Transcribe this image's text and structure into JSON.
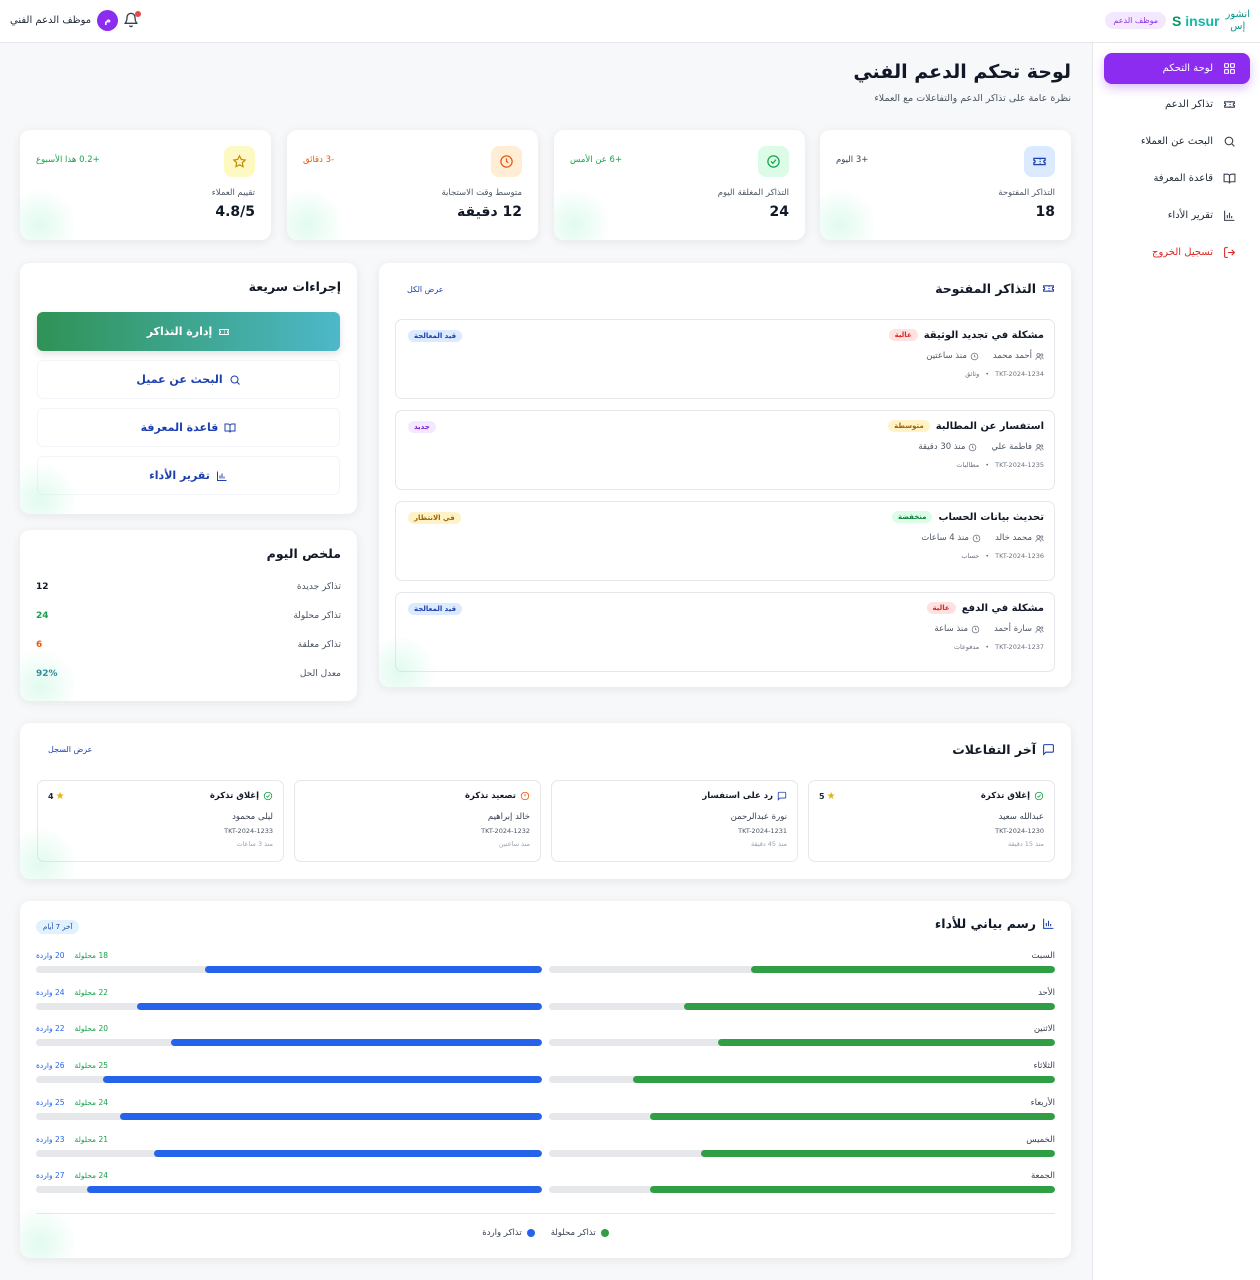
{
  "topbar": {
    "brand_en": "insur",
    "brand_ar_line1": "انشور",
    "brand_ar_line2": "إس",
    "role_badge": "موظف الدعم",
    "user_initial": "م",
    "user_name": "موظف الدعم الفني"
  },
  "sidebar": {
    "items": [
      {
        "label": "لوحة التحكم",
        "icon": "grid-icon",
        "active": true
      },
      {
        "label": "تذاكر الدعم",
        "icon": "ticket-icon"
      },
      {
        "label": "البحث عن العملاء",
        "icon": "search-icon"
      },
      {
        "label": "قاعدة المعرفة",
        "icon": "book-icon"
      },
      {
        "label": "تقرير الأداء",
        "icon": "chart-icon"
      },
      {
        "label": "تسجيل الخروج",
        "icon": "logout-icon"
      }
    ]
  },
  "page": {
    "title": "لوحة تحكم الدعم الفني",
    "subtitle": "نظرة عامة على تذاكر الدعم والتفاعلات مع العملاء"
  },
  "stats": [
    {
      "label": "التذاكر المفتوحة",
      "value": "18",
      "delta": "+3 اليوم",
      "icon": "ticket-icon",
      "color": "#1e40af",
      "bg": "#dbeafe"
    },
    {
      "label": "التذاكر المغلقة اليوم",
      "value": "24",
      "delta": "+6 عن الأمس",
      "icon": "check-circle-icon",
      "color": "#16a34a",
      "bg": "#dcfce7"
    },
    {
      "label": "متوسط وقت الاستجابة",
      "value": "12 دقيقة",
      "delta": "-3 دقائق",
      "icon": "clock-icon",
      "color": "#ea580c",
      "bg": "#ffedd5"
    },
    {
      "label": "تقييم العملاء",
      "value": "4.8/5",
      "delta": "+0.2 هذا الأسبوع",
      "icon": "star-icon",
      "color": "#ca8a04",
      "bg": "#fef9c3"
    }
  ],
  "open_tickets": {
    "title": "التذاكر المفتوحة",
    "view_all": "عرض الكل",
    "items": [
      {
        "title": "مشكلة في تجديد الوثيقة",
        "priority": "عالية",
        "priority_color": "#dc2626",
        "priority_bg": "#fee2e2",
        "customer": "أحمد محمد",
        "time": "منذ ساعتين",
        "id": "TKT-2024-1234",
        "category": "وثائق",
        "status": "قيد المعالجة",
        "status_color": "#1e40af",
        "status_bg": "#dbeafe"
      },
      {
        "title": "استفسار عن المطالبة",
        "priority": "متوسطة",
        "priority_color": "#a16207",
        "priority_bg": "#fef3c7",
        "customer": "فاطمة علي",
        "time": "منذ 30 دقيقة",
        "id": "TKT-2024-1235",
        "category": "مطالبات",
        "status": "جديد",
        "status_color": "#7e22ce",
        "status_bg": "#f3e8ff"
      },
      {
        "title": "تحديث بيانات الحساب",
        "priority": "منخفضة",
        "priority_color": "#15803d",
        "priority_bg": "#dcfce7",
        "customer": "محمد خالد",
        "time": "منذ 4 ساعات",
        "id": "TKT-2024-1236",
        "category": "حساب",
        "status": "في الانتظار",
        "status_color": "#a16207",
        "status_bg": "#fef3c7"
      },
      {
        "title": "مشكلة في الدفع",
        "priority": "عالية",
        "priority_color": "#dc2626",
        "priority_bg": "#fee2e2",
        "customer": "سارة أحمد",
        "time": "منذ ساعة",
        "id": "TKT-2024-1237",
        "category": "مدفوعات",
        "status": "قيد المعالجة",
        "status_color": "#1e40af",
        "status_bg": "#dbeafe"
      }
    ]
  },
  "quick_actions": {
    "title": "إجراءات سريعة",
    "items": [
      {
        "label": "إدارة التذاكر",
        "icon": "ticket-icon"
      },
      {
        "label": "البحث عن عميل",
        "icon": "search-icon"
      },
      {
        "label": "قاعدة المعرفة",
        "icon": "book-icon"
      },
      {
        "label": "تقرير الأداء",
        "icon": "chart-icon"
      }
    ]
  },
  "today_summary": {
    "title": "ملخص اليوم",
    "rows": [
      {
        "label": "تذاكر جديدة",
        "value": "12",
        "color": "#111827"
      },
      {
        "label": "تذاكر محلولة",
        "value": "24",
        "color": "#16a34a"
      },
      {
        "label": "تذاكر معلقة",
        "value": "6",
        "color": "#ea580c"
      },
      {
        "label": "معدل الحل",
        "value": "92%",
        "color": "#0e7490"
      }
    ]
  },
  "interactions": {
    "title": "آخر التفاعلات",
    "view_log": "عرض السجل",
    "items": [
      {
        "type": "إغلاق تذكرة",
        "icon": "check-circle-icon",
        "icon_color": "#16a34a",
        "customer": "عبدالله سعيد",
        "ticket": "TKT-2024-1230",
        "time": "منذ 15 دقيقة",
        "rating": "5"
      },
      {
        "type": "رد على استفسار",
        "icon": "message-icon",
        "icon_color": "#1e40af",
        "customer": "نورة عبدالرحمن",
        "ticket": "TKT-2024-1231",
        "time": "منذ 45 دقيقة",
        "rating": ""
      },
      {
        "type": "تصعيد تذكرة",
        "icon": "alert-circle-icon",
        "icon_color": "#ea580c",
        "customer": "خالد إبراهيم",
        "ticket": "TKT-2024-1232",
        "time": "منذ ساعتين",
        "rating": ""
      },
      {
        "type": "إغلاق تذكرة",
        "icon": "check-circle-icon",
        "icon_color": "#16a34a",
        "customer": "ليلى محمود",
        "ticket": "TKT-2024-1233",
        "time": "منذ 3 ساعات",
        "rating": "4"
      }
    ]
  },
  "performance": {
    "title": "رسم بياني للأداء",
    "period": "آخر 7 أيام",
    "resolved_suffix": "محلولة",
    "incoming_suffix": "واردة",
    "legend_resolved": "تذاكر محلولة",
    "legend_incoming": "تذاكر واردة",
    "colors": {
      "resolved": "#2f9e44",
      "incoming": "#2563eb"
    }
  },
  "chart_data": {
    "type": "bar",
    "title": "رسم بياني للأداء",
    "categories": [
      "السبت",
      "الأحد",
      "الاثنين",
      "الثلاثاء",
      "الأربعاء",
      "الخميس",
      "الجمعة"
    ],
    "series": [
      {
        "name": "تذاكر محلولة",
        "values": [
          18,
          22,
          20,
          25,
          24,
          21,
          24
        ]
      },
      {
        "name": "تذاكر واردة",
        "values": [
          20,
          24,
          22,
          26,
          25,
          23,
          27
        ]
      }
    ],
    "ylim": [
      0,
      30
    ]
  }
}
